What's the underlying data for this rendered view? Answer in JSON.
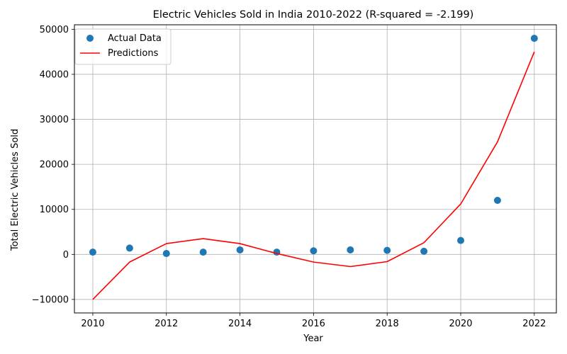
{
  "chart_data": {
    "type": "scatter+line",
    "title": "Electric Vehicles Sold in India 2010-2022 (R-squared = -2.199)",
    "xlabel": "Year",
    "ylabel": "Total Electric Vehicles Sold",
    "xlim": [
      2009.5,
      2022.6
    ],
    "ylim": [
      -13000,
      51000
    ],
    "xticks": [
      2010,
      2012,
      2014,
      2016,
      2018,
      2020,
      2022
    ],
    "yticks": [
      -10000,
      0,
      10000,
      20000,
      30000,
      40000,
      50000
    ],
    "xtick_labels": [
      "2010",
      "2012",
      "2014",
      "2016",
      "2018",
      "2020",
      "2022"
    ],
    "ytick_labels": [
      "−10000",
      "0",
      "10000",
      "20000",
      "30000",
      "40000",
      "50000"
    ],
    "grid": true,
    "legend_position": "top-left",
    "series": [
      {
        "name": "Actual Data",
        "kind": "scatter",
        "color": "#1f77b4",
        "x": [
          2010,
          2011,
          2012,
          2013,
          2014,
          2015,
          2016,
          2017,
          2018,
          2019,
          2020,
          2021,
          2022
        ],
        "y": [
          500,
          1400,
          200,
          500,
          1000,
          500,
          800,
          1000,
          900,
          700,
          3100,
          12000,
          48000
        ]
      },
      {
        "name": "Predictions",
        "kind": "line",
        "color": "#ff0000",
        "x": [
          2010,
          2011,
          2012,
          2013,
          2014,
          2015,
          2016,
          2017,
          2018,
          2019,
          2020,
          2021,
          2022
        ],
        "y": [
          -10000,
          -1700,
          2400,
          3500,
          2400,
          200,
          -1700,
          -2700,
          -1600,
          2600,
          11200,
          25000,
          45000
        ]
      }
    ]
  }
}
